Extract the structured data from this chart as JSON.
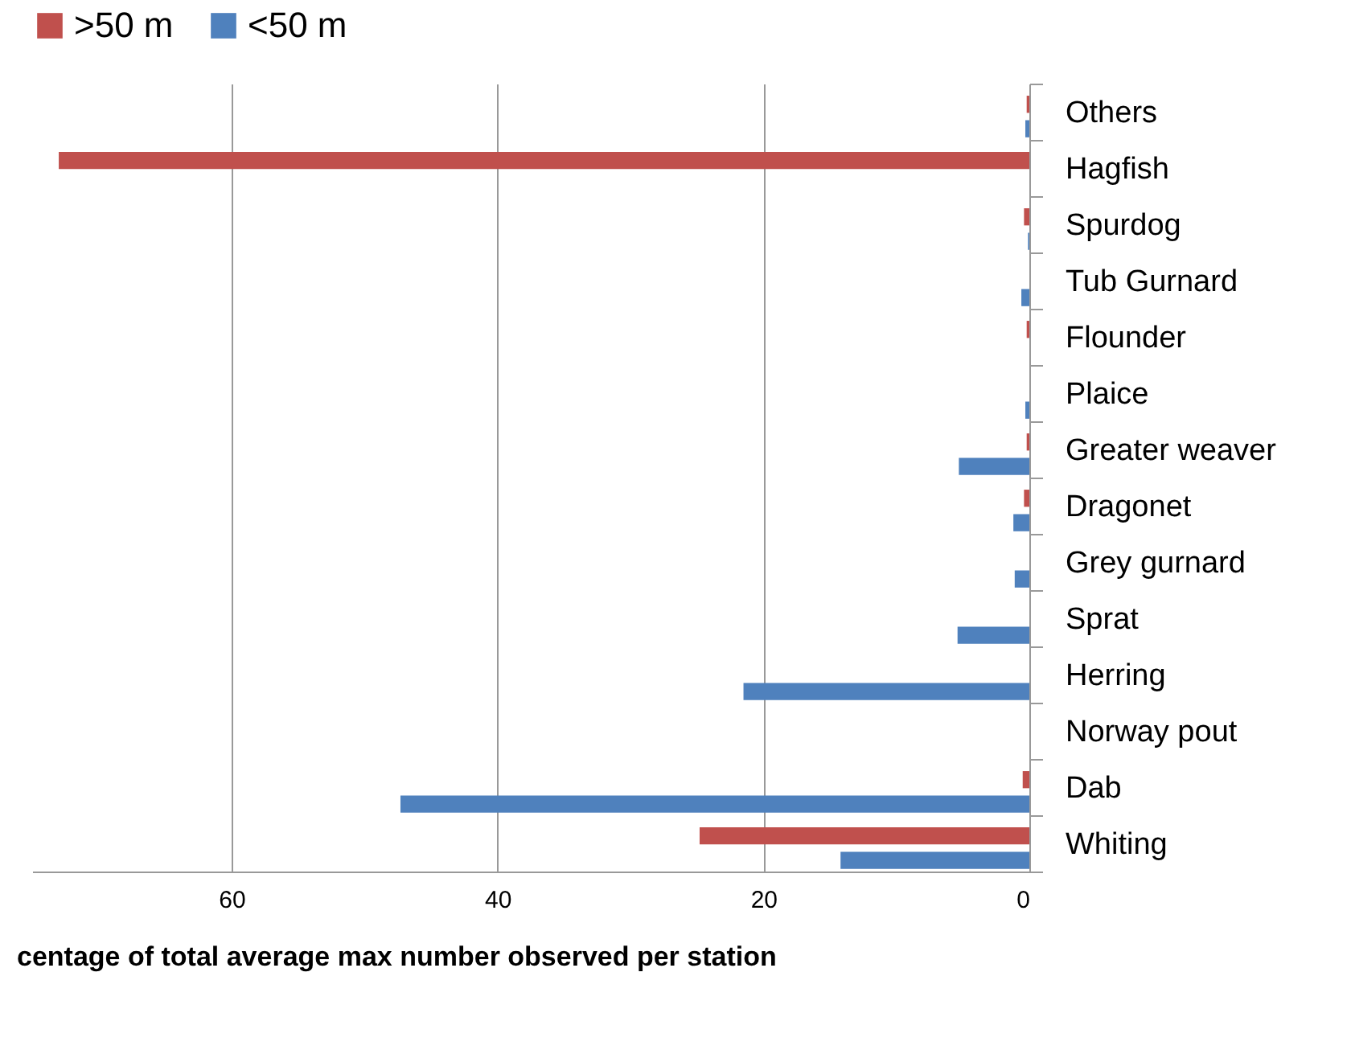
{
  "chart_data": {
    "type": "bar",
    "orientation": "horizontal",
    "xlabel": "centage of total average max number observed per station",
    "categories": [
      "Others",
      "Hagfish",
      "Spurdog",
      "Tub Gurnard",
      "Flounder",
      "Plaice",
      "Greater weaver",
      "Dragonet",
      "Grey gurnard",
      "Sprat",
      "Herring",
      "Norway pout",
      "Dab",
      "Whiting"
    ],
    "series": [
      {
        "name": ">50 m",
        "color": "#c0504d",
        "values": [
          0.2,
          73,
          0.4,
          0,
          0.2,
          0,
          0.2,
          0.4,
          0,
          0,
          0,
          0,
          0.5,
          24.8
        ]
      },
      {
        "name": "<50 m",
        "color": "#4f81bd",
        "values": [
          0.3,
          0,
          0.1,
          0.6,
          0,
          0.3,
          5.3,
          1.2,
          1.1,
          5.4,
          21.5,
          0,
          47.3,
          14.2
        ]
      }
    ],
    "xlim": [
      75,
      0
    ],
    "xticks": [
      60,
      40,
      20,
      0
    ],
    "grid": "x",
    "legend": "top"
  }
}
